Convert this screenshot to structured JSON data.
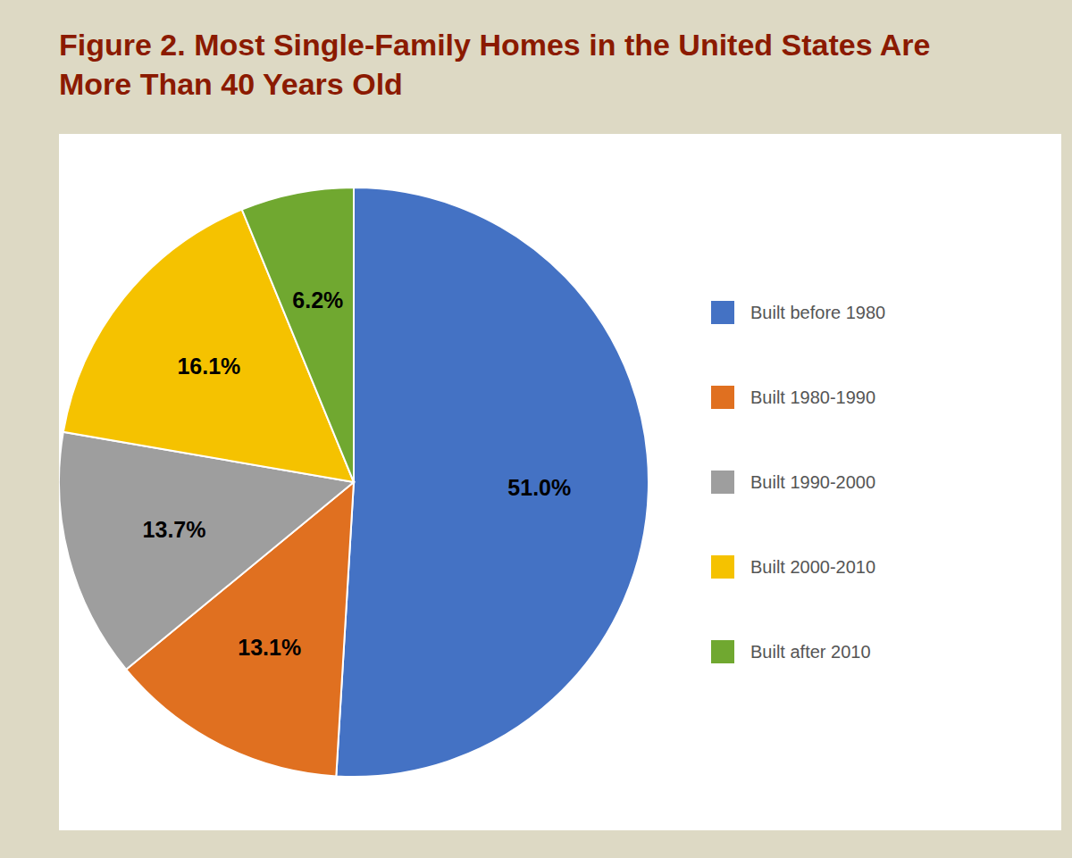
{
  "chart_data": {
    "type": "pie",
    "title": "Figure 2. Most Single-Family Homes in the United States Are More Than 40 Years Old",
    "categories": [
      "Built before 1980",
      "Built 1980-1990",
      "Built 1990-2000",
      "Built 2000-2010",
      "Built after 2010"
    ],
    "values": [
      51.0,
      13.1,
      13.7,
      16.1,
      6.2
    ],
    "value_labels": [
      "51.0%",
      "13.1%",
      "13.7%",
      "16.1%",
      "6.2%"
    ],
    "colors": [
      "#4472C4",
      "#E07020",
      "#9E9E9E",
      "#F5C200",
      "#70A830"
    ],
    "data_labels": true,
    "legend": "right"
  }
}
